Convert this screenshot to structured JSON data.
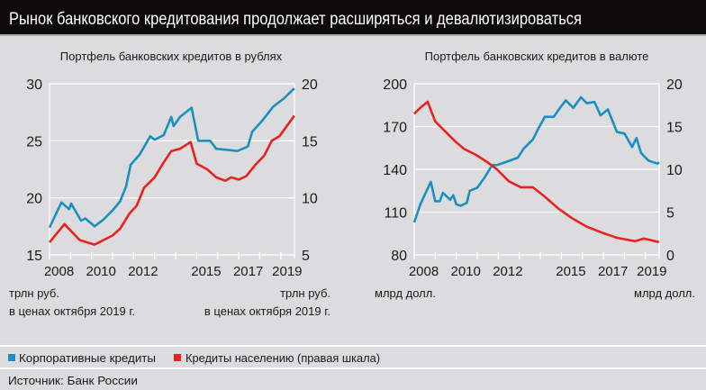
{
  "header": {
    "title": "Рынок банковского кредитования продолжает расширяться и девалютизироваться"
  },
  "legend": {
    "corporate": {
      "label": "Корпоративные кредиты",
      "color": "#1b8fc0"
    },
    "retail": {
      "label": "Кредиты населению (правая шкала)",
      "color": "#e8231d"
    }
  },
  "source": "Источник: Банк России",
  "chart_data": [
    {
      "type": "line",
      "title": "Портфель банковских кредитов в рублях",
      "ylabel_left": "трлн руб. в ценах октября 2019 г.",
      "ylabel_left_lines": [
        "трлн руб.",
        "в ценах октября 2019 г."
      ],
      "ylabel_right_lines": [
        "трлн руб.",
        "в ценах октября 2019 г."
      ],
      "xlim": [
        2008.0,
        2019.65
      ],
      "ylim_left": [
        15,
        30
      ],
      "ylim_right": [
        5,
        20
      ],
      "yticks_left": [
        15,
        20,
        25,
        30
      ],
      "yticks_right": [
        5,
        10,
        15,
        20
      ],
      "xtick_labels": [
        "2008",
        "2010",
        "2012",
        "2015",
        "2017",
        "2019"
      ],
      "grid": true,
      "series": [
        {
          "name": "Корпоративные кредиты",
          "axis": "left",
          "color": "#1b8fc0",
          "x": [
            2008.0,
            2008.57,
            2008.93,
            2009.03,
            2009.5,
            2009.7,
            2010.14,
            2010.57,
            2011.0,
            2011.36,
            2011.64,
            2011.86,
            2012.29,
            2012.79,
            2013.0,
            2013.43,
            2013.79,
            2013.9,
            2014.21,
            2014.76,
            2015.07,
            2015.64,
            2015.93,
            2016.5,
            2016.93,
            2017.43,
            2017.64,
            2018.14,
            2018.64,
            2019.14,
            2019.64
          ],
          "y": [
            17.4,
            19.6,
            19.0,
            19.5,
            18.0,
            18.2,
            17.5,
            18.1,
            18.9,
            19.7,
            21.0,
            22.9,
            23.8,
            25.4,
            25.1,
            25.5,
            27.1,
            26.3,
            27.1,
            27.9,
            25.0,
            25.0,
            24.3,
            24.2,
            24.1,
            24.5,
            25.8,
            26.8,
            28.0,
            28.7,
            29.6
          ]
        },
        {
          "name": "Кредиты населению (правая шкала)",
          "axis": "right",
          "color": "#e8231d",
          "x": [
            2008.0,
            2008.71,
            2009.43,
            2009.79,
            2010.14,
            2010.57,
            2011.0,
            2011.36,
            2011.79,
            2012.14,
            2012.5,
            2013.0,
            2013.36,
            2013.79,
            2014.21,
            2014.71,
            2015.0,
            2015.5,
            2015.93,
            2016.36,
            2016.64,
            2017.0,
            2017.36,
            2017.79,
            2018.21,
            2018.57,
            2018.93,
            2019.64
          ],
          "y": [
            6.1,
            7.7,
            6.3,
            6.1,
            5.9,
            6.3,
            6.7,
            7.3,
            8.6,
            9.3,
            10.9,
            11.8,
            12.9,
            14.1,
            14.3,
            14.9,
            13.0,
            12.5,
            11.8,
            11.5,
            11.8,
            11.6,
            11.9,
            12.9,
            13.7,
            15.0,
            15.4,
            17.2
          ]
        }
      ]
    },
    {
      "type": "line",
      "title": "Портфель банковских кредитов в валюте",
      "ylabel_left_lines": [
        "млрд долл."
      ],
      "ylabel_right_lines": [
        "млрд долл."
      ],
      "xlim": [
        2008.0,
        2019.65
      ],
      "ylim_left": [
        80,
        200
      ],
      "ylim_right": [
        0,
        20
      ],
      "yticks_left": [
        80,
        110,
        140,
        170,
        200
      ],
      "yticks_right": [
        0,
        5,
        10,
        15,
        20
      ],
      "xtick_labels": [
        "2008",
        "2010",
        "2012",
        "2015",
        "2017",
        "2019"
      ],
      "grid": true,
      "series": [
        {
          "name": "Корпоративные кредиты",
          "axis": "left",
          "color": "#1b8fc0",
          "x": [
            2008.0,
            2008.29,
            2008.79,
            2009.0,
            2009.21,
            2009.36,
            2009.71,
            2009.86,
            2010.0,
            2010.21,
            2010.5,
            2010.64,
            2011.0,
            2011.36,
            2011.71,
            2011.93,
            2012.36,
            2012.93,
            2013.21,
            2013.64,
            2013.86,
            2014.21,
            2014.64,
            2014.93,
            2015.21,
            2015.57,
            2015.93,
            2016.21,
            2016.57,
            2016.86,
            2017.21,
            2017.64,
            2018.0,
            2018.36,
            2018.57,
            2018.79,
            2019.14,
            2019.57,
            2019.64
          ],
          "y": [
            102.8,
            115.5,
            131.3,
            117.6,
            117.6,
            123.5,
            118.7,
            121.8,
            115.5,
            114.4,
            116.5,
            125,
            127.1,
            134.5,
            143,
            143,
            145.1,
            148.2,
            154.6,
            160.9,
            167.3,
            176.8,
            176.8,
            183.1,
            188.4,
            183.1,
            190.5,
            186.3,
            187.3,
            177.8,
            182,
            166.2,
            165.1,
            155.6,
            162,
            151.4,
            146.1,
            144,
            145
          ]
        },
        {
          "name": "Кредиты населению (правая шкала)",
          "axis": "right",
          "color": "#e8231d",
          "x": [
            2008.0,
            2008.29,
            2008.64,
            2009.0,
            2009.36,
            2009.93,
            2010.36,
            2010.93,
            2011.5,
            2011.93,
            2012.5,
            2013.07,
            2013.64,
            2014.21,
            2014.86,
            2015.5,
            2016.21,
            2016.93,
            2017.64,
            2018.5,
            2018.93,
            2019.64
          ],
          "y": [
            16.5,
            17.2,
            17.9,
            15.6,
            14.7,
            13.3,
            12.4,
            11.7,
            10.8,
            10.0,
            8.6,
            7.9,
            7.9,
            6.8,
            5.4,
            4.3,
            3.3,
            2.6,
            2.0,
            1.6,
            1.9,
            1.5
          ]
        }
      ]
    }
  ]
}
